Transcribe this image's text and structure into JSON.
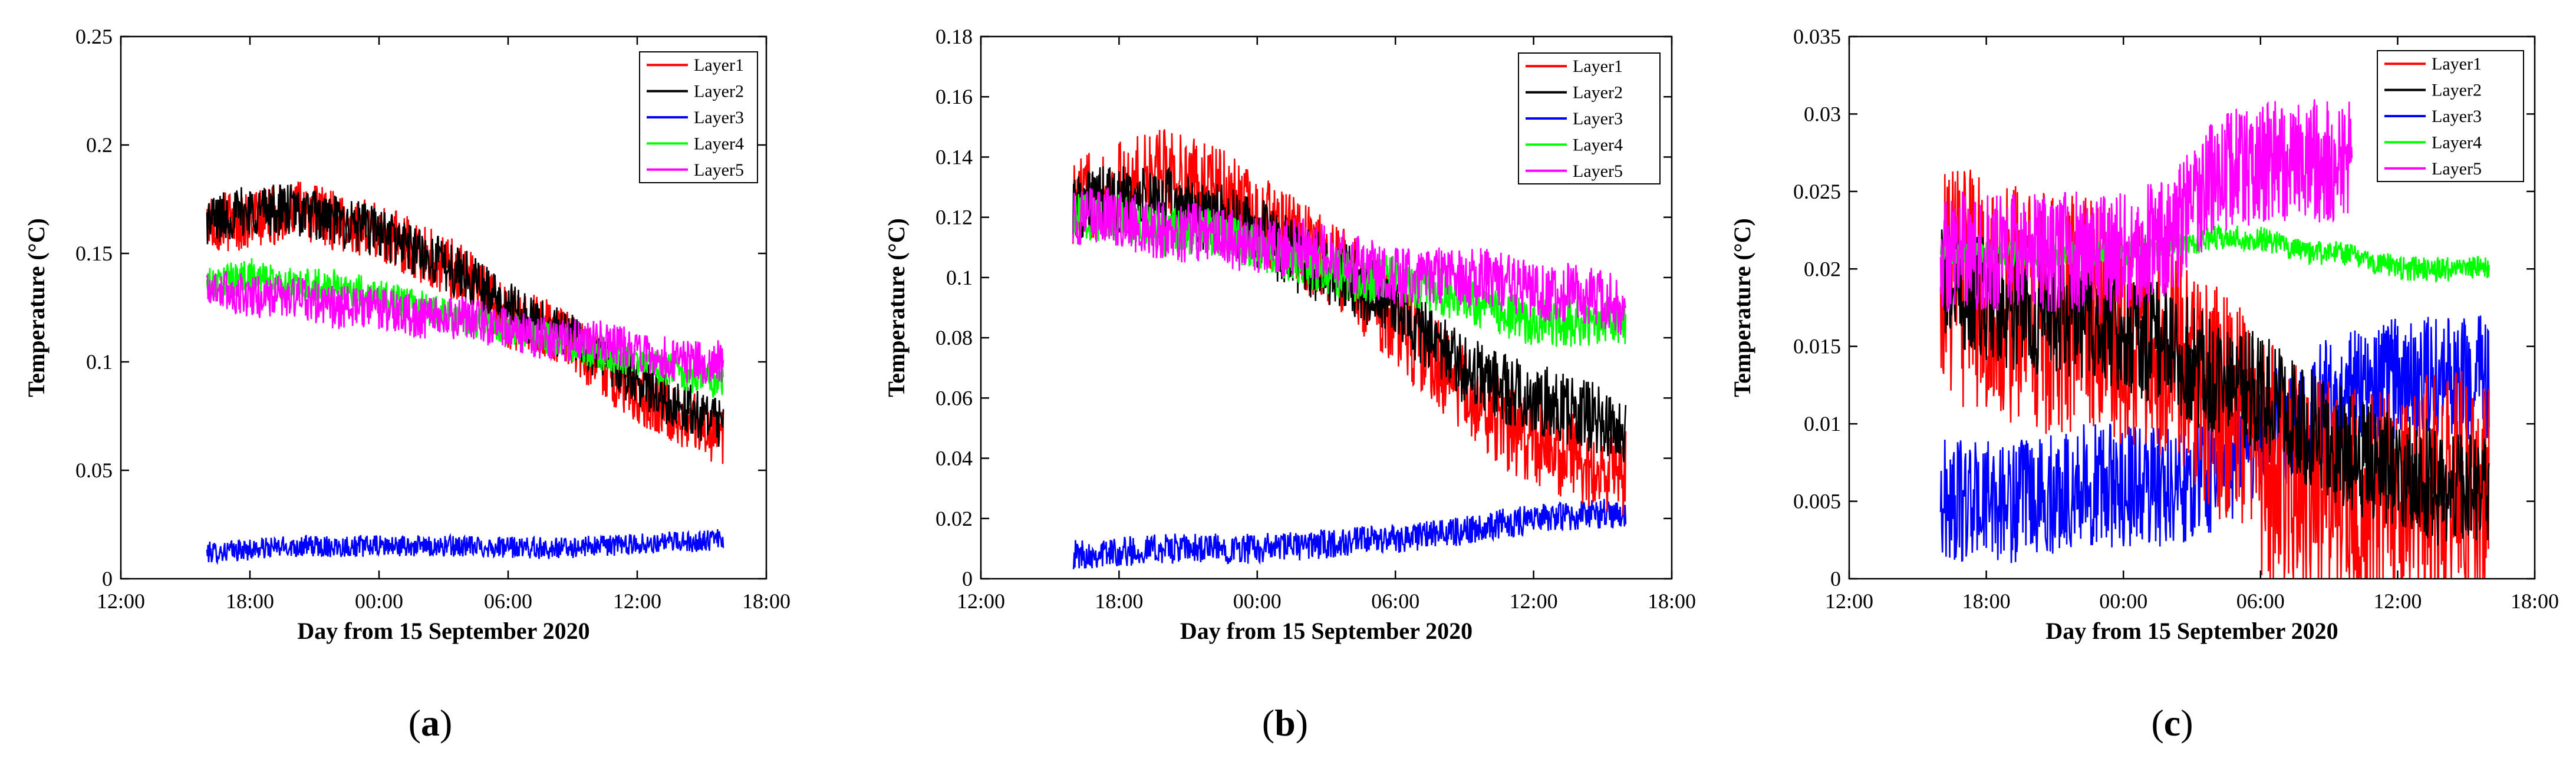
{
  "figure": {
    "panel_labels": [
      "(a)",
      "(b)",
      "(c)"
    ],
    "panel_letters": [
      "a",
      "b",
      "c"
    ]
  },
  "colors": {
    "Layer1": "#ff0000",
    "Layer2": "#000000",
    "Layer3": "#0000ff",
    "Layer4": "#00ff00",
    "Layer5": "#ff00ff"
  },
  "chart_data": [
    {
      "type": "line",
      "panel": "(a)",
      "xlabel": "Day from 15 September 2020",
      "ylabel": "Temperature (°C)",
      "xlim": [
        12,
        42
      ],
      "ylim": [
        0,
        0.25
      ],
      "xticks": [
        12,
        18,
        24,
        30,
        36,
        42
      ],
      "xtick_labels": [
        "12:00",
        "18:00",
        "00:00",
        "06:00",
        "12:00",
        "18:00"
      ],
      "yticks": [
        0,
        0.05,
        0.1,
        0.15,
        0.2,
        0.25
      ],
      "ytick_labels": [
        "0",
        "0.05",
        "0.1",
        "0.15",
        "0.2",
        "0.25"
      ],
      "legend": [
        "Layer1",
        "Layer2",
        "Layer3",
        "Layer4",
        "Layer5"
      ],
      "legend_position": "top-right",
      "series": [
        {
          "name": "Layer1",
          "x": [
            16,
            18,
            20,
            22,
            24,
            26,
            28,
            30,
            32,
            34,
            36,
            38,
            40
          ],
          "y": [
            0.165,
            0.165,
            0.17,
            0.165,
            0.16,
            0.15,
            0.14,
            0.12,
            0.115,
            0.1,
            0.085,
            0.075,
            0.065
          ],
          "noise": 0.014
        },
        {
          "name": "Layer2",
          "x": [
            16,
            18,
            20,
            22,
            24,
            26,
            28,
            30,
            32,
            34,
            36,
            38,
            40
          ],
          "y": [
            0.165,
            0.17,
            0.17,
            0.165,
            0.16,
            0.15,
            0.14,
            0.125,
            0.115,
            0.105,
            0.09,
            0.08,
            0.07
          ],
          "noise": 0.012
        },
        {
          "name": "Layer3",
          "x": [
            16,
            20,
            24,
            28,
            32,
            36,
            40
          ],
          "y": [
            0.012,
            0.015,
            0.015,
            0.015,
            0.014,
            0.016,
            0.018
          ],
          "noise": 0.005
        },
        {
          "name": "Layer4",
          "x": [
            16,
            18,
            20,
            22,
            24,
            26,
            28,
            30,
            32,
            34,
            36,
            38,
            40
          ],
          "y": [
            0.135,
            0.14,
            0.135,
            0.135,
            0.13,
            0.125,
            0.12,
            0.115,
            0.11,
            0.105,
            0.1,
            0.095,
            0.09
          ],
          "noise": 0.008
        },
        {
          "name": "Layer5",
          "x": [
            16,
            18,
            20,
            22,
            24,
            26,
            28,
            30,
            32,
            34,
            36,
            38,
            40
          ],
          "y": [
            0.135,
            0.13,
            0.13,
            0.125,
            0.125,
            0.12,
            0.12,
            0.115,
            0.11,
            0.11,
            0.105,
            0.1,
            0.1
          ],
          "noise": 0.01
        }
      ]
    },
    {
      "type": "line",
      "panel": "(b)",
      "xlabel": "Day from 15 September 2020",
      "ylabel": "Temperature (°C)",
      "xlim": [
        12,
        42
      ],
      "ylim": [
        0,
        0.18
      ],
      "xticks": [
        12,
        18,
        24,
        30,
        36,
        42
      ],
      "xtick_labels": [
        "12:00",
        "18:00",
        "00:00",
        "06:00",
        "12:00",
        "18:00"
      ],
      "yticks": [
        0,
        0.02,
        0.04,
        0.06,
        0.08,
        0.1,
        0.12,
        0.14,
        0.16,
        0.18
      ],
      "ytick_labels": [
        "0",
        "0.02",
        "0.04",
        "0.06",
        "0.08",
        "0.1",
        "0.12",
        "0.14",
        "0.16",
        "0.18"
      ],
      "legend": [
        "Layer1",
        "Layer2",
        "Layer3",
        "Layer4",
        "Layer5"
      ],
      "legend_position": "top-right",
      "series": [
        {
          "name": "Layer1",
          "x": [
            16,
            18,
            20,
            22,
            24,
            26,
            28,
            30,
            32,
            34,
            36,
            38,
            40
          ],
          "y": [
            0.125,
            0.13,
            0.135,
            0.13,
            0.12,
            0.11,
            0.1,
            0.085,
            0.07,
            0.055,
            0.045,
            0.04,
            0.035
          ],
          "noise": 0.015
        },
        {
          "name": "Layer2",
          "x": [
            16,
            18,
            20,
            22,
            24,
            26,
            28,
            30,
            32,
            34,
            36,
            38,
            40
          ],
          "y": [
            0.125,
            0.125,
            0.125,
            0.12,
            0.115,
            0.105,
            0.1,
            0.09,
            0.075,
            0.065,
            0.06,
            0.055,
            0.05
          ],
          "noise": 0.012
        },
        {
          "name": "Layer3",
          "x": [
            16,
            20,
            24,
            28,
            32,
            36,
            40
          ],
          "y": [
            0.008,
            0.01,
            0.01,
            0.012,
            0.015,
            0.02,
            0.022
          ],
          "noise": 0.005
        },
        {
          "name": "Layer4",
          "x": [
            16,
            18,
            20,
            22,
            24,
            26,
            28,
            30,
            32,
            34,
            36,
            38,
            40
          ],
          "y": [
            0.12,
            0.12,
            0.115,
            0.115,
            0.11,
            0.105,
            0.1,
            0.1,
            0.095,
            0.09,
            0.085,
            0.085,
            0.085
          ],
          "noise": 0.008
        },
        {
          "name": "Layer5",
          "x": [
            16,
            18,
            20,
            22,
            24,
            26,
            28,
            30,
            32,
            34,
            36,
            38,
            40
          ],
          "y": [
            0.12,
            0.12,
            0.115,
            0.115,
            0.11,
            0.11,
            0.105,
            0.1,
            0.1,
            0.1,
            0.095,
            0.095,
            0.09
          ],
          "noise": 0.01
        }
      ]
    },
    {
      "type": "line",
      "panel": "(c)",
      "xlabel": "Day from 15 September 2020",
      "ylabel": "Temperature (°C)",
      "xlim": [
        12,
        42
      ],
      "ylim": [
        0,
        0.035
      ],
      "xticks": [
        12,
        18,
        24,
        30,
        36,
        42
      ],
      "xtick_labels": [
        "12:00",
        "18:00",
        "00:00",
        "06:00",
        "12:00",
        "18:00"
      ],
      "yticks": [
        0,
        0.005,
        0.01,
        0.015,
        0.02,
        0.025,
        0.03,
        0.035
      ],
      "ytick_labels": [
        "0",
        "0.005",
        "0.01",
        "0.015",
        "0.02",
        "0.025",
        "0.03",
        "0.035"
      ],
      "legend": [
        "Layer1",
        "Layer2",
        "Layer3",
        "Layer4",
        "Layer5"
      ],
      "legend_position": "top-right",
      "series": [
        {
          "name": "Layer1",
          "x": [
            16,
            18,
            20,
            22,
            24,
            26,
            28,
            30,
            32,
            34,
            36,
            38,
            40
          ],
          "y": [
            0.02,
            0.018,
            0.017,
            0.017,
            0.016,
            0.015,
            0.012,
            0.008,
            0.006,
            0.005,
            0.005,
            0.006,
            0.005
          ],
          "noise": 0.008
        },
        {
          "name": "Layer2",
          "x": [
            16,
            18,
            20,
            22,
            24,
            26,
            28,
            30,
            32,
            34,
            36,
            38,
            40
          ],
          "y": [
            0.019,
            0.018,
            0.017,
            0.017,
            0.016,
            0.015,
            0.013,
            0.012,
            0.01,
            0.008,
            0.007,
            0.006,
            0.005
          ],
          "noise": 0.004
        },
        {
          "name": "Layer3",
          "x": [
            16,
            18,
            20,
            22,
            24,
            26,
            28,
            30,
            32,
            34,
            36,
            38,
            40
          ],
          "y": [
            0.005,
            0.005,
            0.005,
            0.006,
            0.006,
            0.006,
            0.007,
            0.009,
            0.011,
            0.012,
            0.013,
            0.013,
            0.013
          ],
          "noise": 0.004
        },
        {
          "name": "Layer4",
          "x": [
            16,
            20,
            24,
            28,
            30,
            32,
            34,
            36,
            38,
            40
          ],
          "y": [
            0.021,
            0.021,
            0.021,
            0.022,
            0.022,
            0.021,
            0.021,
            0.02,
            0.02,
            0.02
          ],
          "noise": 0.0008
        },
        {
          "name": "Layer5",
          "x": [
            16,
            18,
            20,
            22,
            24,
            26,
            28,
            30,
            32,
            34
          ],
          "y": [
            0.021,
            0.021,
            0.021,
            0.021,
            0.021,
            0.022,
            0.026,
            0.027,
            0.027,
            0.027
          ],
          "noise": 0.004
        }
      ]
    }
  ]
}
